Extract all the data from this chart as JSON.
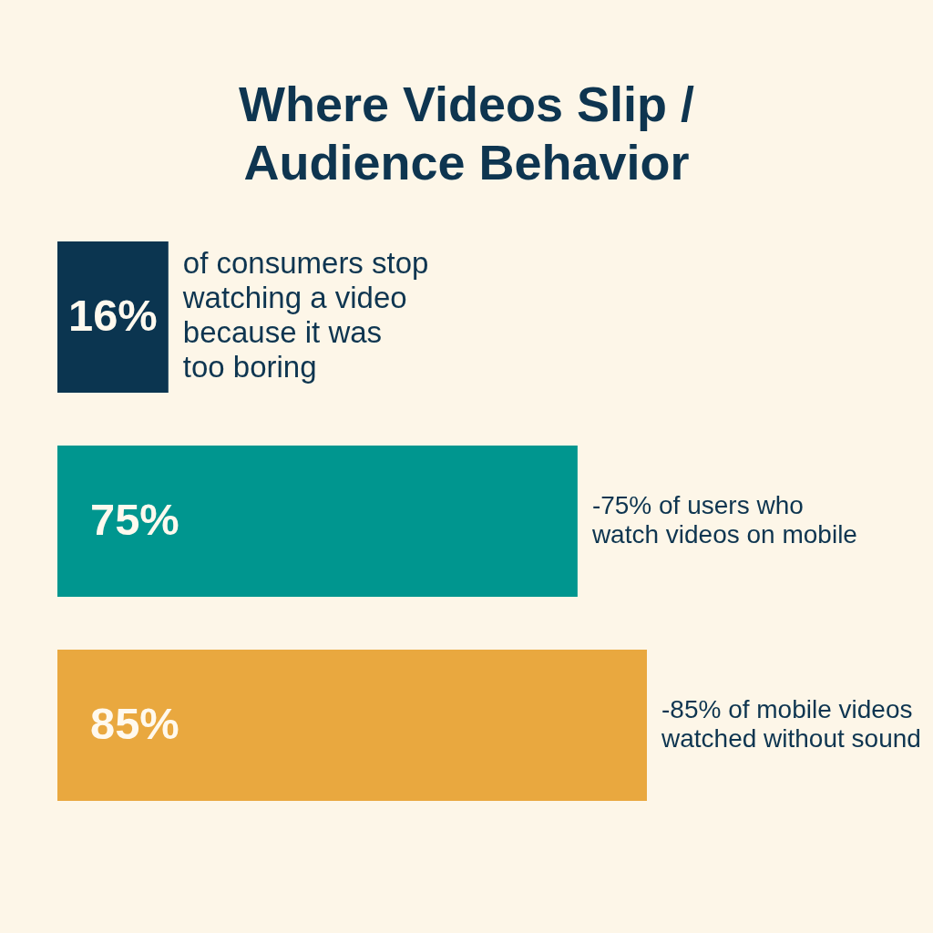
{
  "chart_data": {
    "type": "bar",
    "orientation": "horizontal",
    "title": "Where Videos Slip / Audience Behavior",
    "categories": [
      null,
      null,
      null
    ],
    "values": [
      16,
      75,
      85
    ],
    "colors": [
      "#0b3550",
      "#00968f",
      "#e9a83f"
    ],
    "value_labels": [
      "16%",
      "75%",
      "85%"
    ],
    "tick_labels": false,
    "annotations": [
      "of consumers stop watching a video because it was too boring",
      "-75% of users who watch videos on mobile",
      "-85% of mobile videos watched without sound"
    ]
  }
}
